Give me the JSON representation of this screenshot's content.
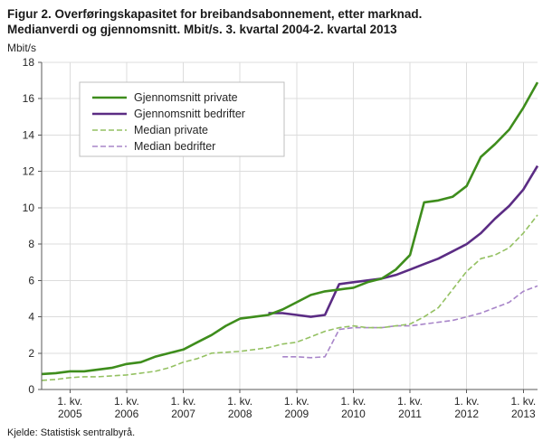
{
  "title": {
    "line1": "Figur 2. Overføringskapasitet for breibandsabonnement, etter marknad.",
    "line2": "Medianverdi og gjennomsnitt. Mbit/s. 3. kvartal 2004-2. kvartal 2013"
  },
  "footer": "Kjelde: Statistisk sentralbyrå.",
  "chart_data": {
    "type": "line",
    "unit_label": "Mbit/s",
    "ylim": [
      0,
      18
    ],
    "ytick_step": 2,
    "grid": true,
    "legend_position": "top-left-inside",
    "x_quarters": [
      "2004K3",
      "2004K4",
      "2005K1",
      "2005K2",
      "2005K3",
      "2005K4",
      "2006K1",
      "2006K2",
      "2006K3",
      "2006K4",
      "2007K1",
      "2007K2",
      "2007K3",
      "2007K4",
      "2008K1",
      "2008K2",
      "2008K3",
      "2008K4",
      "2009K1",
      "2009K2",
      "2009K3",
      "2009K4",
      "2010K1",
      "2010K2",
      "2010K3",
      "2010K4",
      "2011K1",
      "2011K2",
      "2011K3",
      "2011K4",
      "2012K1",
      "2012K2",
      "2012K3",
      "2012K4",
      "2013K1",
      "2013K2"
    ],
    "x_ticks": [
      {
        "index": 2,
        "line1": "1. kv.",
        "line2": "2005"
      },
      {
        "index": 6,
        "line1": "1. kv.",
        "line2": "2006"
      },
      {
        "index": 10,
        "line1": "1. kv.",
        "line2": "2007"
      },
      {
        "index": 14,
        "line1": "1. kv.",
        "line2": "2008"
      },
      {
        "index": 18,
        "line1": "1. kv.",
        "line2": "2009"
      },
      {
        "index": 22,
        "line1": "1. kv.",
        "line2": "2010"
      },
      {
        "index": 26,
        "line1": "1. kv.",
        "line2": "2011"
      },
      {
        "index": 30,
        "line1": "1. kv.",
        "line2": "2012"
      },
      {
        "index": 34,
        "line1": "1. kv.",
        "line2": "2013"
      }
    ],
    "series": [
      {
        "name": "Gjennomsnitt private",
        "color": "#3e8d1c",
        "dashed": false,
        "values": [
          0.85,
          0.9,
          1.0,
          1.0,
          1.1,
          1.2,
          1.4,
          1.5,
          1.8,
          2.0,
          2.2,
          2.6,
          3.0,
          3.5,
          3.9,
          4.0,
          4.1,
          4.4,
          4.8,
          5.2,
          5.4,
          5.5,
          5.6,
          5.9,
          6.1,
          6.6,
          7.4,
          10.3,
          10.4,
          10.6,
          11.2,
          12.8,
          13.5,
          14.3,
          15.5,
          16.9
        ]
      },
      {
        "name": "Gjennomsnitt bedrifter",
        "color": "#5b2c84",
        "dashed": false,
        "values": [
          null,
          null,
          null,
          null,
          null,
          null,
          null,
          null,
          null,
          null,
          null,
          null,
          null,
          null,
          null,
          null,
          4.2,
          4.2,
          4.1,
          4.0,
          4.1,
          5.8,
          5.9,
          6.0,
          6.1,
          6.3,
          6.6,
          6.9,
          7.2,
          7.6,
          8.0,
          8.6,
          9.4,
          10.1,
          11.0,
          12.3
        ]
      },
      {
        "name": "Median private",
        "color": "#94c162",
        "dashed": true,
        "values": [
          0.5,
          0.55,
          0.65,
          0.7,
          0.7,
          0.75,
          0.8,
          0.9,
          1.0,
          1.2,
          1.5,
          1.7,
          2.0,
          2.05,
          2.1,
          2.2,
          2.3,
          2.5,
          2.6,
          2.9,
          3.2,
          3.4,
          3.5,
          3.4,
          3.4,
          3.5,
          3.6,
          4.0,
          4.5,
          5.5,
          6.5,
          7.2,
          7.4,
          7.8,
          8.6,
          9.6
        ]
      },
      {
        "name": "Median bedrifter",
        "color": "#a885c9",
        "dashed": true,
        "values": [
          null,
          null,
          null,
          null,
          null,
          null,
          null,
          null,
          null,
          null,
          null,
          null,
          null,
          null,
          null,
          null,
          null,
          1.8,
          1.8,
          1.75,
          1.8,
          3.3,
          3.4,
          3.4,
          3.4,
          3.5,
          3.5,
          3.6,
          3.7,
          3.8,
          4.0,
          4.2,
          4.5,
          4.8,
          5.4,
          5.7
        ]
      }
    ],
    "colors": {
      "grid": "#dcdcdc",
      "axis": "#595959",
      "text": "#262626"
    }
  }
}
